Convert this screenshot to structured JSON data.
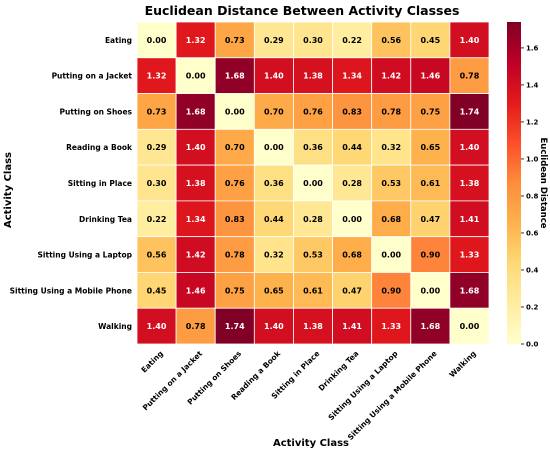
{
  "chart_data": {
    "type": "heatmap",
    "title": "Euclidean Distance Between Activity Classes",
    "xlabel": "Activity Class",
    "ylabel": "Activity Class",
    "categories": [
      "Eating",
      "Putting on a Jacket",
      "Putting on Shoes",
      "Reading a Book",
      "Sitting in Place",
      "Drinking Tea",
      "Sitting Using a Laptop",
      "Sitting Using a Mobile Phone",
      "Walking"
    ],
    "values": [
      [
        0.0,
        1.32,
        0.73,
        0.29,
        0.3,
        0.22,
        0.56,
        0.45,
        1.4
      ],
      [
        1.32,
        0.0,
        1.68,
        1.4,
        1.38,
        1.34,
        1.42,
        1.46,
        0.78
      ],
      [
        0.73,
        1.68,
        0.0,
        0.7,
        0.76,
        0.83,
        0.78,
        0.75,
        1.74
      ],
      [
        0.29,
        1.4,
        0.7,
        0.0,
        0.36,
        0.44,
        0.32,
        0.65,
        1.4
      ],
      [
        0.3,
        1.38,
        0.76,
        0.36,
        0.0,
        0.28,
        0.53,
        0.61,
        1.38
      ],
      [
        0.22,
        1.34,
        0.83,
        0.44,
        0.28,
        0.0,
        0.68,
        0.47,
        1.41
      ],
      [
        0.56,
        1.42,
        0.78,
        0.32,
        0.53,
        0.68,
        0.0,
        0.9,
        1.33
      ],
      [
        0.45,
        1.46,
        0.75,
        0.65,
        0.61,
        0.47,
        0.9,
        0.0,
        1.68
      ],
      [
        1.4,
        0.78,
        1.74,
        1.4,
        1.38,
        1.41,
        1.33,
        1.68,
        0.0
      ]
    ],
    "colorbar": {
      "label": "Euclidean Distance",
      "range": [
        0.0,
        1.74
      ],
      "ticks": [
        "0.0",
        "0.2",
        "0.4",
        "0.6",
        "0.8",
        "1.0",
        "1.2",
        "1.4",
        "1.6"
      ],
      "colormap": "YlOrRd"
    },
    "annotations": true,
    "grid_lines_color": "#ffffff"
  }
}
